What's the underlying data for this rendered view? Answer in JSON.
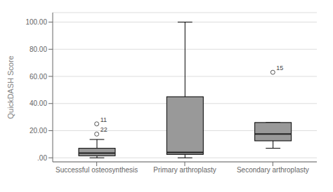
{
  "chart_data": {
    "type": "box",
    "ylabel": "QuickDASH Score",
    "categories": [
      "Successful osteosynthesis",
      "Primary arthroplasty",
      "Secondary arthroplasty"
    ],
    "boxes": [
      {
        "q1": 1.5,
        "median": 3.5,
        "q3": 7.0,
        "whislo": 0.0,
        "whishi": 13.5,
        "outliers": [
          17.5,
          25.0
        ],
        "outlier_labels": [
          "22",
          "11"
        ]
      },
      {
        "q1": 2.5,
        "median": 4.0,
        "q3": 45.0,
        "whislo": 0.0,
        "whishi": 100.0,
        "outliers": [],
        "outlier_labels": []
      },
      {
        "q1": 12.5,
        "median": 17.5,
        "q3": 26.0,
        "whislo": 7.0,
        "whishi": 26.0,
        "outliers": [
          63.0
        ],
        "outlier_labels": [
          "15"
        ]
      }
    ],
    "color": "#999999",
    "ylim": [
      -3,
      107
    ],
    "yticks": [
      {
        "value": 0,
        "label": ".00"
      },
      {
        "value": 20,
        "label": "20.00"
      },
      {
        "value": 40,
        "label": "40.00"
      },
      {
        "value": 60,
        "label": "60.00"
      },
      {
        "value": 80,
        "label": "80.00"
      },
      {
        "value": 100,
        "label": "100.00"
      }
    ],
    "grid": true
  }
}
